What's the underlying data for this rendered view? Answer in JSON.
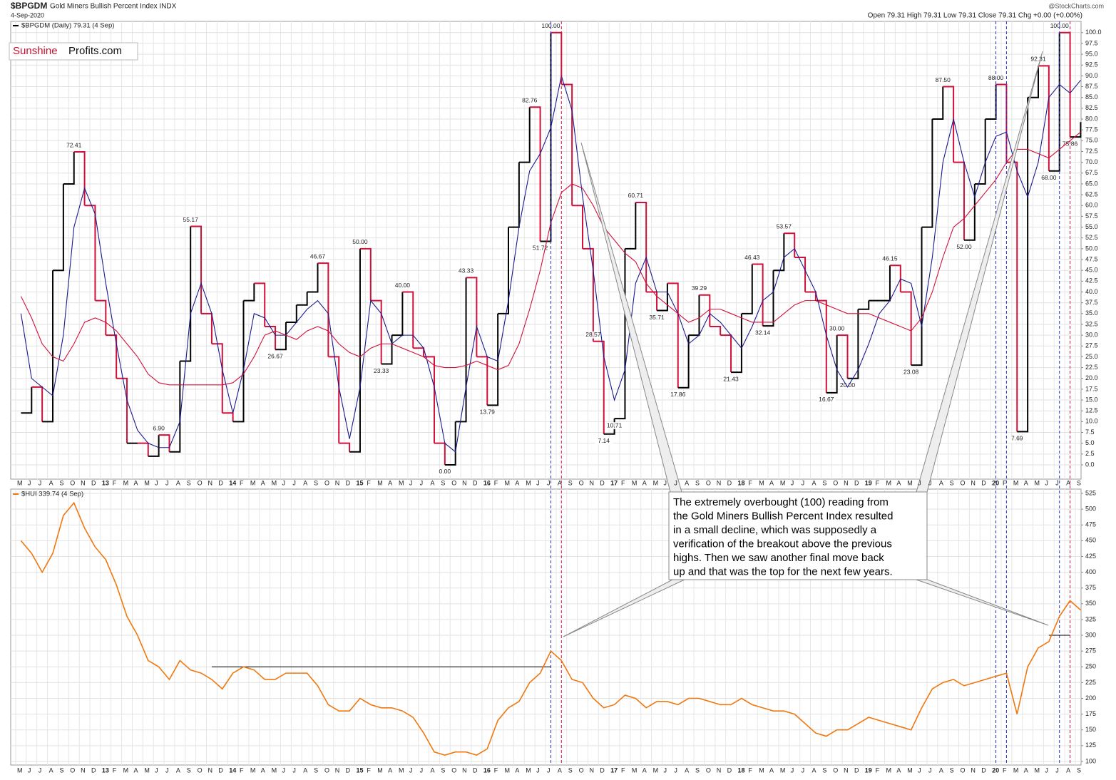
{
  "header": {
    "title": "$BPGDM",
    "subtitle": "Gold Miners Bullish Percent Index INDX",
    "date": "4-Sep-2020",
    "quote": "Open 79.31  High 79.31  Low 79.31  Close 79.31  Chg +0.00 (+0.00%)",
    "credit": "@StockCharts.com"
  },
  "logo": {
    "part1": "Sunshine",
    "part2": "Profits.com"
  },
  "callout": {
    "lines": [
      "The extremely overbought (100) reading from",
      "the Gold Miners Bullish Percent Index resulted",
      "in a small decline, which was supposedly a",
      "verification of the breakout above the previous",
      "highs. Then we saw another final move back",
      "up and that was the top for the next few years."
    ]
  },
  "chart_data": [
    {
      "type": "line",
      "grid": true,
      "categories": [
        "M",
        "J",
        "J",
        "A",
        "S",
        "O",
        "N",
        "D",
        "13",
        "F",
        "M",
        "A",
        "M",
        "J",
        "J",
        "A",
        "S",
        "O",
        "N",
        "D",
        "14",
        "F",
        "M",
        "A",
        "M",
        "J",
        "J",
        "A",
        "S",
        "O",
        "N",
        "D",
        "15",
        "F",
        "M",
        "A",
        "M",
        "J",
        "J",
        "A",
        "S",
        "O",
        "N",
        "D",
        "16",
        "F",
        "M",
        "A",
        "M",
        "J",
        "J",
        "A",
        "S",
        "O",
        "N",
        "D",
        "17",
        "F",
        "M",
        "A",
        "M",
        "J",
        "J",
        "A",
        "S",
        "O",
        "N",
        "D",
        "18",
        "F",
        "M",
        "A",
        "M",
        "J",
        "J",
        "A",
        "S",
        "O",
        "N",
        "D",
        "19",
        "F",
        "M",
        "A",
        "M",
        "J",
        "J",
        "A",
        "S",
        "O",
        "N",
        "D",
        "20",
        "F",
        "M",
        "A",
        "M",
        "J",
        "J",
        "A",
        "S"
      ],
      "series": [
        {
          "name": "$BPGDM (Daily) 79.31 (4 Sep)",
          "color": "#000000",
          "down_color": "#d0103a",
          "values": [
            12,
            18,
            10,
            45,
            65,
            72.41,
            60,
            38,
            30,
            20,
            5,
            5,
            2,
            6.9,
            3,
            24,
            55.17,
            35,
            28,
            12,
            10,
            38,
            42,
            32,
            26.67,
            33,
            37,
            40,
            46.67,
            25,
            5,
            3,
            50.0,
            38,
            23.33,
            30,
            40.0,
            27,
            25,
            5,
            0.0,
            10,
            43.33,
            25,
            13.79,
            35,
            55,
            70,
            82.76,
            51.72,
            100.0,
            88,
            60,
            50,
            28.57,
            7.14,
            10.71,
            50,
            60.71,
            40,
            35.71,
            42,
            17.86,
            30,
            39.29,
            32,
            30,
            21.43,
            35,
            46.43,
            32.14,
            45,
            53.57,
            48,
            40,
            38,
            16.67,
            30.0,
            20.0,
            36,
            38,
            38,
            46.15,
            40,
            23.08,
            55,
            80,
            87.5,
            70,
            52.0,
            65,
            80,
            88.0,
            70,
            7.69,
            85,
            92.31,
            68.0,
            100.0,
            75.86,
            79.31
          ],
          "value_labels": [
            null,
            null,
            null,
            null,
            null,
            "72.41",
            null,
            null,
            null,
            null,
            null,
            null,
            null,
            "6.90",
            null,
            null,
            "55.17",
            null,
            null,
            null,
            null,
            null,
            null,
            null,
            "26.67",
            null,
            null,
            null,
            "46.67",
            null,
            null,
            null,
            "50.00",
            null,
            "23.33",
            null,
            "40.00",
            null,
            null,
            null,
            "0.00",
            null,
            "43.33",
            null,
            "13.79",
            null,
            null,
            null,
            "82.76",
            "51.72",
            "100.00",
            null,
            null,
            null,
            "28.57",
            "7.14",
            "10.71",
            null,
            "60.71",
            null,
            "35.71",
            null,
            "17.86",
            null,
            "39.29",
            null,
            null,
            "21.43",
            null,
            "46.43",
            "32.14",
            null,
            "53.57",
            null,
            null,
            null,
            "16.67",
            "30.00",
            "20.00",
            null,
            null,
            null,
            "46.15",
            null,
            "23.08",
            null,
            null,
            "87.50",
            null,
            "52.00",
            null,
            null,
            "88.00",
            null,
            "7.69",
            null,
            "92.31",
            "68.00",
            "100.00",
            "75.86",
            null
          ]
        },
        {
          "color": "#1a1a8c",
          "values": [
            35,
            20,
            18,
            16,
            30,
            55,
            64,
            58,
            42,
            28,
            15,
            8,
            5,
            4,
            4,
            10,
            35,
            42,
            35,
            22,
            12,
            22,
            35,
            34,
            30,
            30,
            33,
            36,
            38,
            35,
            18,
            6,
            18,
            38,
            35,
            28,
            30,
            30,
            27,
            18,
            5,
            3,
            18,
            32,
            25,
            24,
            38,
            55,
            68,
            72,
            78,
            90,
            82,
            62,
            45,
            25,
            15,
            22,
            42,
            48,
            40,
            40,
            35,
            28,
            30,
            35,
            33,
            30,
            27,
            32,
            38,
            40,
            48,
            50,
            45,
            40,
            30,
            22,
            18,
            22,
            28,
            35,
            38,
            43,
            42,
            32,
            48,
            70,
            80,
            70,
            62,
            70,
            76,
            77,
            68,
            62,
            70,
            85,
            88,
            86,
            89
          ]
        },
        {
          "color": "#d0103a",
          "values": [
            39,
            34,
            28,
            25,
            24,
            28,
            33,
            34,
            33,
            31,
            28,
            25,
            21,
            19,
            18.5,
            18.5,
            18.5,
            18.5,
            18.5,
            18.5,
            19,
            21,
            25,
            30,
            31,
            30,
            29,
            31,
            32,
            31,
            28,
            26,
            25,
            27,
            28,
            28,
            27,
            26,
            25,
            23,
            22.5,
            22.5,
            23,
            24,
            23,
            22,
            23,
            28,
            36,
            45,
            56,
            63,
            65,
            64,
            60,
            55,
            52,
            49,
            47,
            42,
            39,
            37,
            35,
            33,
            34,
            36,
            36,
            35,
            34,
            33,
            33,
            33,
            35,
            37,
            38,
            38,
            37,
            36,
            35,
            35,
            35,
            34,
            33,
            32,
            31,
            34,
            40,
            48,
            55,
            57,
            60,
            63,
            66,
            70,
            73,
            73,
            72,
            71,
            73,
            75,
            77
          ]
        }
      ],
      "ylim": [
        -3.3,
        102.6
      ],
      "yticks": [
        {
          "value": 0,
          "label": "0.0"
        },
        {
          "value": 2.5,
          "label": "2.5"
        },
        {
          "value": 5,
          "label": "5.0"
        },
        {
          "value": 7.5,
          "label": "7.5"
        },
        {
          "value": 10,
          "label": "10.0"
        },
        {
          "value": 12.5,
          "label": "12.5"
        },
        {
          "value": 15,
          "label": "15.0"
        },
        {
          "value": 17.5,
          "label": "17.5"
        },
        {
          "value": 20,
          "label": "20.0"
        },
        {
          "value": 22.5,
          "label": "22.5"
        },
        {
          "value": 25,
          "label": "25.0"
        },
        {
          "value": 27.5,
          "label": "27.5"
        },
        {
          "value": 30,
          "label": "30.0"
        },
        {
          "value": 32.5,
          "label": "32.5"
        },
        {
          "value": 35,
          "label": "35.0"
        },
        {
          "value": 37.5,
          "label": "37.5"
        },
        {
          "value": 40,
          "label": "40.0"
        },
        {
          "value": 42.5,
          "label": "42.5"
        },
        {
          "value": 45,
          "label": "45.0"
        },
        {
          "value": 47.5,
          "label": "47.5"
        },
        {
          "value": 50,
          "label": "50.0"
        },
        {
          "value": 52.5,
          "label": "52.5"
        },
        {
          "value": 55,
          "label": "55.0"
        },
        {
          "value": 57.5,
          "label": "57.5"
        },
        {
          "value": 60,
          "label": "60.0"
        },
        {
          "value": 62.5,
          "label": "62.5"
        },
        {
          "value": 65,
          "label": "65.0"
        },
        {
          "value": 67.5,
          "label": "67.5"
        },
        {
          "value": 70,
          "label": "70.0"
        },
        {
          "value": 72.5,
          "label": "72.5"
        },
        {
          "value": 75,
          "label": "75.0"
        },
        {
          "value": 77.5,
          "label": "77.5"
        },
        {
          "value": 80,
          "label": "80.0"
        },
        {
          "value": 82.5,
          "label": "82.5"
        },
        {
          "value": 85,
          "label": "85.0"
        },
        {
          "value": 87.5,
          "label": "87.5"
        },
        {
          "value": 90,
          "label": "90.0"
        },
        {
          "value": 92.5,
          "label": "92.5"
        },
        {
          "value": 95,
          "label": "95.0"
        },
        {
          "value": 97.5,
          "label": "97.5"
        },
        {
          "value": 100,
          "label": "100.0"
        }
      ],
      "markers": [
        {
          "index": 50,
          "color": "#2030d0"
        },
        {
          "index": 51,
          "color": "#d0103a"
        },
        {
          "index": 92,
          "color": "#2030d0"
        },
        {
          "index": 93,
          "color": "#2030d0"
        },
        {
          "index": 98,
          "color": "#2030d0"
        },
        {
          "index": 99,
          "color": "#d0103a"
        }
      ]
    },
    {
      "type": "line",
      "grid": true,
      "categories": [
        "M",
        "J",
        "J",
        "A",
        "S",
        "O",
        "N",
        "D",
        "13",
        "F",
        "M",
        "A",
        "M",
        "J",
        "J",
        "A",
        "S",
        "O",
        "N",
        "D",
        "14",
        "F",
        "M",
        "A",
        "M",
        "J",
        "J",
        "A",
        "S",
        "O",
        "N",
        "D",
        "15",
        "F",
        "M",
        "A",
        "M",
        "J",
        "J",
        "A",
        "S",
        "O",
        "N",
        "D",
        "16",
        "F",
        "M",
        "A",
        "M",
        "J",
        "J",
        "A",
        "S",
        "O",
        "N",
        "D",
        "17",
        "F",
        "M",
        "A",
        "M",
        "J",
        "J",
        "A",
        "S",
        "O",
        "N",
        "D",
        "18",
        "F",
        "M",
        "A",
        "M",
        "J",
        "J",
        "A",
        "S",
        "O",
        "N",
        "D",
        "19",
        "F",
        "M",
        "A",
        "M",
        "J",
        "J",
        "A",
        "S",
        "O",
        "N",
        "D",
        "20",
        "F",
        "M",
        "A",
        "M",
        "J",
        "J",
        "A",
        "S"
      ],
      "series": [
        {
          "name": "$HUI 339.74 (4 Sep)",
          "color": "#f07810",
          "values": [
            450,
            430,
            400,
            430,
            490,
            510,
            470,
            440,
            420,
            380,
            330,
            300,
            260,
            250,
            230,
            260,
            245,
            240,
            230,
            215,
            240,
            250,
            245,
            230,
            230,
            240,
            240,
            240,
            220,
            190,
            180,
            180,
            200,
            190,
            185,
            185,
            180,
            170,
            145,
            115,
            110,
            115,
            115,
            110,
            120,
            165,
            185,
            195,
            225,
            240,
            275,
            260,
            230,
            225,
            200,
            185,
            190,
            205,
            200,
            185,
            195,
            195,
            190,
            200,
            200,
            195,
            190,
            190,
            200,
            190,
            185,
            180,
            180,
            175,
            160,
            145,
            140,
            150,
            150,
            160,
            170,
            165,
            160,
            155,
            150,
            185,
            215,
            225,
            230,
            220,
            225,
            230,
            235,
            240,
            175,
            250,
            280,
            290,
            330,
            355,
            340
          ]
        }
      ],
      "ylim": [
        94.3,
        531.8
      ],
      "yticks": [
        100,
        125,
        150,
        175,
        200,
        225,
        250,
        275,
        300,
        325,
        350,
        375,
        400,
        425,
        450,
        475,
        500,
        525
      ],
      "levels": [
        {
          "value": 250,
          "from": 18,
          "to": 50
        },
        {
          "value": 300,
          "from": 97,
          "to": 99
        }
      ]
    }
  ]
}
